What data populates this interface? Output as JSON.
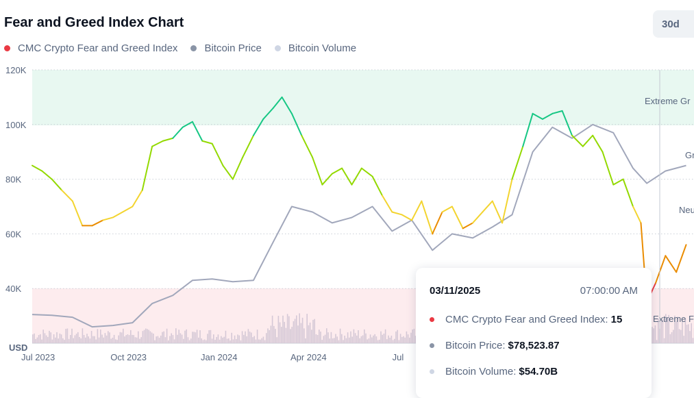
{
  "header": {
    "title": "Fear and Greed Index Chart",
    "range_button": "30d"
  },
  "legend": [
    {
      "label": "CMC Crypto Fear and Greed Index",
      "color": "#ea3943"
    },
    {
      "label": "Bitcoin Price",
      "color": "#8a94a6"
    },
    {
      "label": "Bitcoin Volume",
      "color": "#cfd6e4"
    }
  ],
  "zones": {
    "extreme_greed": "Extreme Gr",
    "greed": "Gr",
    "neutral": "Neu",
    "extreme_fear": "Extreme F"
  },
  "tooltip": {
    "date": "03/11/2025",
    "time": "07:00:00 AM",
    "index_label": "CMC Crypto Fear and Greed Index:",
    "index_value": "15",
    "price_label": "Bitcoin Price:",
    "price_value": "$78,523.87",
    "volume_label": "Bitcoin Volume:",
    "volume_value": "$54.70B"
  },
  "chart_data": {
    "type": "line",
    "title": "Fear and Greed Index Chart",
    "ylabel": "USD",
    "ylim": [
      20000,
      120000
    ],
    "y_ticks": [
      "120K",
      "100K",
      "80K",
      "60K",
      "40K"
    ],
    "y_tick_values": [
      120000,
      100000,
      80000,
      60000,
      40000
    ],
    "x_ticks": [
      "Jul 2023",
      "Oct 2023",
      "Jan 2024",
      "Apr 2024",
      "Jul"
    ],
    "grid": true,
    "legend_position": "top-left",
    "fear_greed_scale_ylim": [
      0,
      100
    ],
    "series": [
      {
        "name": "CMC Crypto Fear and Greed Index",
        "axis": "index 0-100",
        "x": [
          "2023-06-25",
          "2023-07-05",
          "2023-07-15",
          "2023-07-25",
          "2023-08-05",
          "2023-08-15",
          "2023-08-25",
          "2023-09-05",
          "2023-09-15",
          "2023-09-25",
          "2023-10-05",
          "2023-10-15",
          "2023-10-25",
          "2023-11-05",
          "2023-11-15",
          "2023-11-25",
          "2023-12-05",
          "2023-12-15",
          "2023-12-25",
          "2024-01-05",
          "2024-01-15",
          "2024-01-25",
          "2024-02-05",
          "2024-02-15",
          "2024-02-25",
          "2024-03-05",
          "2024-03-15",
          "2024-03-25",
          "2024-04-05",
          "2024-04-15",
          "2024-04-25",
          "2024-05-05",
          "2024-05-15",
          "2024-05-25",
          "2024-06-05",
          "2024-06-15",
          "2024-06-25",
          "2024-07-05",
          "2024-07-15",
          "2024-07-25",
          "2024-08-05",
          "2024-08-15",
          "2024-08-25",
          "2024-09-05",
          "2024-09-15",
          "2024-09-25",
          "2024-10-05",
          "2024-10-15",
          "2024-10-25",
          "2024-11-05",
          "2024-11-15",
          "2024-11-25",
          "2024-12-05",
          "2024-12-15",
          "2024-12-25",
          "2025-01-05",
          "2025-01-15",
          "2025-01-25",
          "2025-02-05",
          "2025-02-15",
          "2025-02-25",
          "2025-03-05",
          "2025-03-11",
          "2025-03-20",
          "2025-03-30",
          "2025-04-10",
          "2025-04-20"
        ],
        "values": [
          65,
          63,
          60,
          56,
          52,
          43,
          43,
          45,
          46,
          48,
          50,
          56,
          72,
          74,
          75,
          79,
          81,
          74,
          73,
          65,
          60,
          68,
          76,
          82,
          86,
          90,
          84,
          76,
          68,
          58,
          62,
          64,
          58,
          64,
          61,
          54,
          48,
          47,
          45,
          52,
          40,
          48,
          50,
          42,
          44,
          48,
          52,
          44,
          60,
          72,
          84,
          82,
          84,
          85,
          76,
          72,
          76,
          70,
          58,
          60,
          50,
          44,
          15,
          22,
          32,
          26,
          36
        ],
        "colors_by_level": {
          "extreme_greed": "#16c784",
          "greed": "#93d900",
          "neutral": "#f3d42f",
          "fear": "#ea8c00",
          "extreme_fear": "#ea3943"
        }
      },
      {
        "name": "Bitcoin Price",
        "axis": "USD",
        "x": [
          "2023-06-25",
          "2023-07-15",
          "2023-08-05",
          "2023-08-25",
          "2023-09-15",
          "2023-10-05",
          "2023-10-25",
          "2023-11-15",
          "2023-12-05",
          "2023-12-25",
          "2024-01-15",
          "2024-02-05",
          "2024-02-25",
          "2024-03-15",
          "2024-04-05",
          "2024-04-25",
          "2024-05-15",
          "2024-06-05",
          "2024-06-25",
          "2024-07-15",
          "2024-08-05",
          "2024-08-25",
          "2024-09-15",
          "2024-10-05",
          "2024-10-25",
          "2024-11-15",
          "2024-12-05",
          "2024-12-25",
          "2025-01-15",
          "2025-02-05",
          "2025-02-25",
          "2025-03-11",
          "2025-03-30",
          "2025-04-20"
        ],
        "values": [
          30500,
          30200,
          29500,
          26000,
          26500,
          27500,
          34500,
          37500,
          43000,
          43500,
          42500,
          43000,
          57000,
          70000,
          68000,
          64000,
          66000,
          70000,
          61000,
          65000,
          54000,
          60000,
          58500,
          62500,
          67000,
          90000,
          99000,
          95000,
          100000,
          97000,
          84000,
          78500,
          83000,
          85000
        ]
      },
      {
        "name": "Bitcoin Volume",
        "axis": "USD (bars)",
        "note": "daily volume bars along chart bottom",
        "peak_label": "$54.70B on 03/11/2025"
      }
    ]
  }
}
